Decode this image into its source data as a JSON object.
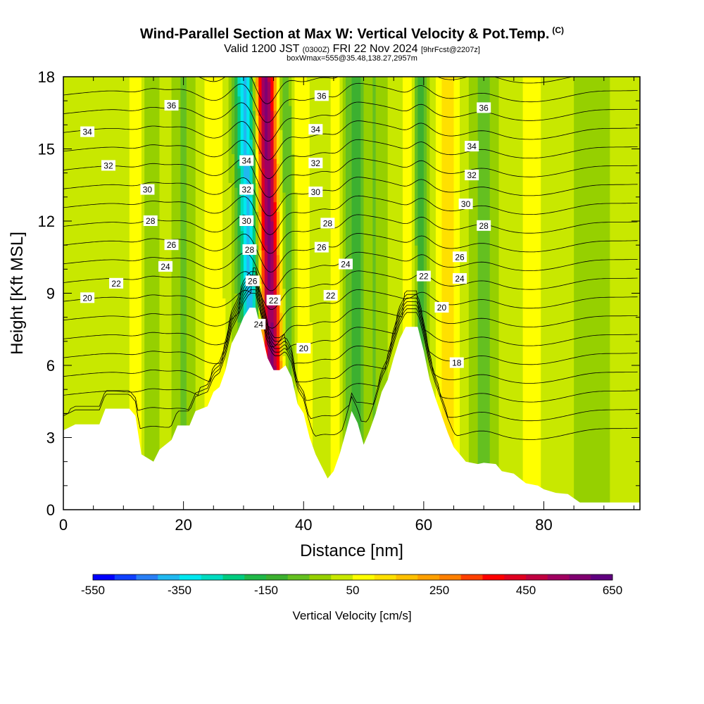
{
  "title": {
    "main": "Wind-Parallel Section at Max W: Vertical Velocity & Pot.Temp.",
    "copyright": "(C)",
    "valid_prefix": "Valid 1200 JST",
    "valid_utc": "(0300Z)",
    "valid_date": "FRI 22 Nov 2024",
    "forecast": "[9hrFcst@2207z]",
    "box_info": "boxWmax=555@35.48,138.27,2957m"
  },
  "chart_data": {
    "type": "heatmap",
    "xlabel": "Distance [nm]",
    "ylabel": "Height [Kft MSL]",
    "xlim": [
      0,
      96
    ],
    "ylim": [
      0,
      18
    ],
    "x_ticks": [
      0,
      20,
      40,
      60,
      80
    ],
    "y_ticks": [
      0,
      3,
      6,
      9,
      12,
      15,
      18
    ],
    "colorbar": {
      "label": "Vertical Velocity [cm/s]",
      "ticks": [
        -550,
        -350,
        -150,
        50,
        250,
        450,
        650
      ],
      "min": -550,
      "max": 650,
      "colors": [
        "#0000ff",
        "#1040ff",
        "#2a7ff5",
        "#20b8f0",
        "#00e8f0",
        "#00dcc0",
        "#00cc80",
        "#20b848",
        "#3cb030",
        "#64c020",
        "#96d000",
        "#c8e800",
        "#ffff00",
        "#ffe000",
        "#ffc000",
        "#ffa000",
        "#ff8000",
        "#ff4000",
        "#ff0000",
        "#e00020",
        "#c00040",
        "#a00060",
        "#800070",
        "#600080"
      ]
    },
    "terrain_kft": [
      [
        0,
        3.3
      ],
      [
        2,
        3.55
      ],
      [
        6,
        3.55
      ],
      [
        7,
        4.2
      ],
      [
        11,
        4.2
      ],
      [
        12,
        3.9
      ],
      [
        13,
        2.3
      ],
      [
        15,
        2.0
      ],
      [
        16,
        2.5
      ],
      [
        18,
        2.9
      ],
      [
        19,
        3.5
      ],
      [
        21,
        3.5
      ],
      [
        22,
        4.1
      ],
      [
        24,
        4.3
      ],
      [
        25,
        4.9
      ],
      [
        26,
        5.1
      ],
      [
        27,
        5.8
      ],
      [
        28,
        6.9
      ],
      [
        29,
        7.4
      ],
      [
        30,
        8.0
      ],
      [
        31,
        8.4
      ],
      [
        32,
        8.4
      ],
      [
        33,
        7.4
      ],
      [
        34,
        6.3
      ],
      [
        35,
        5.8
      ],
      [
        36,
        5.8
      ],
      [
        37,
        6.0
      ],
      [
        38,
        5.5
      ],
      [
        39,
        4.4
      ],
      [
        40,
        4.0
      ],
      [
        41,
        3.0
      ],
      [
        42,
        2.3
      ],
      [
        43,
        1.8
      ],
      [
        44,
        1.3
      ],
      [
        45,
        1.6
      ],
      [
        46,
        2.3
      ],
      [
        47,
        3.2
      ],
      [
        48,
        4.1
      ],
      [
        49,
        3.6
      ],
      [
        50,
        2.7
      ],
      [
        51,
        3.3
      ],
      [
        52,
        4.0
      ],
      [
        53,
        4.9
      ],
      [
        54,
        5.4
      ],
      [
        55,
        6.3
      ],
      [
        56,
        7.1
      ],
      [
        57,
        7.6
      ],
      [
        59,
        7.6
      ],
      [
        60,
        6.6
      ],
      [
        61,
        5.4
      ],
      [
        62,
        4.6
      ],
      [
        63,
        3.9
      ],
      [
        64,
        3.2
      ],
      [
        65,
        2.6
      ],
      [
        66,
        2.3
      ],
      [
        67,
        2.0
      ],
      [
        69,
        1.9
      ],
      [
        70,
        1.95
      ],
      [
        72,
        1.9
      ],
      [
        73,
        1.6
      ],
      [
        75,
        1.5
      ],
      [
        76,
        1.3
      ],
      [
        77,
        1.1
      ],
      [
        79,
        1.0
      ],
      [
        80,
        0.85
      ],
      [
        82,
        0.7
      ],
      [
        84,
        0.65
      ],
      [
        86,
        0.3
      ],
      [
        88,
        0.3
      ],
      [
        96,
        0.3
      ]
    ],
    "vertical_velocity_features": [
      {
        "x": 34.5,
        "width": 1.8,
        "lean": -0.09,
        "w_cm_s": 555
      },
      {
        "x": 31.2,
        "width": 1.8,
        "lean": -0.09,
        "w_cm_s": -400
      },
      {
        "x": 37.5,
        "width": 1.6,
        "lean": -0.05,
        "w_cm_s": -150
      },
      {
        "x": 39.5,
        "width": 1.6,
        "lean": -0.05,
        "w_cm_s": 100
      },
      {
        "x": 45.5,
        "width": 1.0,
        "lean": 0.0,
        "w_cm_s": 80
      },
      {
        "x": 48.5,
        "width": 1.6,
        "lean": 0.0,
        "w_cm_s": -150
      },
      {
        "x": 52.0,
        "width": 1.6,
        "lean": 0.0,
        "w_cm_s": -70
      },
      {
        "x": 59.5,
        "width": 1.3,
        "lean": -0.03,
        "w_cm_s": -170
      },
      {
        "x": 58.0,
        "width": 1.2,
        "lean": -0.03,
        "w_cm_s": 100
      },
      {
        "x": 12.5,
        "width": 1.8,
        "lean": 0.0,
        "w_cm_s": 50
      },
      {
        "x": 14.5,
        "width": 1.4,
        "lean": 0.0,
        "w_cm_s": -70
      },
      {
        "x": 20.0,
        "width": 1.8,
        "lean": 0.0,
        "w_cm_s": -80
      },
      {
        "x": 25.0,
        "width": 1.8,
        "lean": 0.0,
        "w_cm_s": 80
      },
      {
        "x": 64.0,
        "width": 2.2,
        "lean": 0.0,
        "w_cm_s": 90
      },
      {
        "x": 70.0,
        "width": 2.0,
        "lean": 0.0,
        "w_cm_s": -90
      },
      {
        "x": 78.0,
        "width": 3.0,
        "lean": 0.0,
        "w_cm_s": 40
      },
      {
        "x": 88.0,
        "width": 3.0,
        "lean": 0.0,
        "w_cm_s": -60
      }
    ],
    "theta_levels": [
      18,
      19,
      20,
      21,
      22,
      23,
      24,
      25,
      26,
      27,
      28,
      29,
      30,
      31,
      32,
      33,
      34,
      35,
      36,
      37
    ],
    "theta_labels": [
      {
        "text": "36",
        "x": 18,
        "y": 16.8
      },
      {
        "text": "34",
        "x": 4,
        "y": 15.7
      },
      {
        "text": "32",
        "x": 7.5,
        "y": 14.3
      },
      {
        "text": "30",
        "x": 14,
        "y": 13.3
      },
      {
        "text": "28",
        "x": 14.5,
        "y": 12.0
      },
      {
        "text": "26",
        "x": 18,
        "y": 11.0
      },
      {
        "text": "24",
        "x": 17,
        "y": 10.1
      },
      {
        "text": "22",
        "x": 8.8,
        "y": 9.4
      },
      {
        "text": "20",
        "x": 4,
        "y": 8.8
      },
      {
        "text": "36",
        "x": 43,
        "y": 17.2
      },
      {
        "text": "34",
        "x": 42,
        "y": 15.8
      },
      {
        "text": "32",
        "x": 42,
        "y": 14.4
      },
      {
        "text": "30",
        "x": 42,
        "y": 13.2
      },
      {
        "text": "28",
        "x": 44,
        "y": 11.9
      },
      {
        "text": "26",
        "x": 43,
        "y": 10.9
      },
      {
        "text": "24",
        "x": 47,
        "y": 10.2
      },
      {
        "text": "22",
        "x": 44.5,
        "y": 8.9
      },
      {
        "text": "20",
        "x": 40,
        "y": 6.7
      },
      {
        "text": "34",
        "x": 30.5,
        "y": 14.5
      },
      {
        "text": "32",
        "x": 30.5,
        "y": 13.3
      },
      {
        "text": "30",
        "x": 30.5,
        "y": 12.0
      },
      {
        "text": "28",
        "x": 31,
        "y": 10.8
      },
      {
        "text": "26",
        "x": 31.5,
        "y": 9.5
      },
      {
        "text": "24",
        "x": 32.5,
        "y": 7.7
      },
      {
        "text": "22",
        "x": 35,
        "y": 8.7
      },
      {
        "text": "36",
        "x": 70,
        "y": 16.7
      },
      {
        "text": "34",
        "x": 68,
        "y": 15.1
      },
      {
        "text": "32",
        "x": 68,
        "y": 13.9
      },
      {
        "text": "30",
        "x": 67,
        "y": 12.7
      },
      {
        "text": "28",
        "x": 70,
        "y": 11.8
      },
      {
        "text": "26",
        "x": 66,
        "y": 10.5
      },
      {
        "text": "24",
        "x": 66,
        "y": 9.6
      },
      {
        "text": "22",
        "x": 60,
        "y": 9.7
      },
      {
        "text": "20",
        "x": 63,
        "y": 8.4
      },
      {
        "text": "18",
        "x": 65.5,
        "y": 6.1
      }
    ]
  }
}
